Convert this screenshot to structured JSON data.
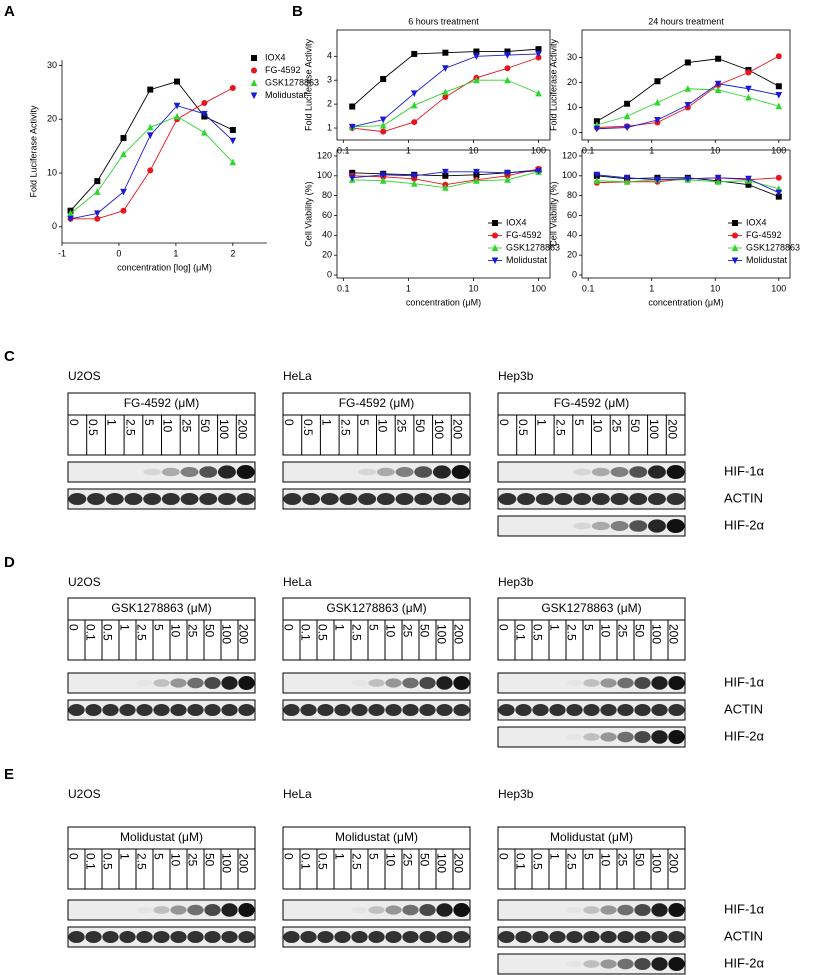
{
  "panels": [
    "A",
    "B"
  ],
  "chart_data": [
    {
      "type": "line",
      "xlabel": "concentration [log] (μM)",
      "ylabel": "Fold Luciferase Activity",
      "x": [
        -0.85,
        -0.38,
        0.08,
        0.55,
        1.02,
        1.5,
        2.0
      ],
      "xlim": [
        -1,
        2.6
      ],
      "xticks": [
        -1,
        0,
        1,
        2
      ],
      "ylim": [
        -3,
        31
      ],
      "yticks": [
        0,
        10,
        20,
        30
      ],
      "legend": "upper-right",
      "series": [
        {
          "name": "IOX4",
          "color": "#000000",
          "marker": "square",
          "values": [
            3,
            8.5,
            16.5,
            25.5,
            27,
            20.5,
            18
          ]
        },
        {
          "name": "FG-4592",
          "color": "#e8141e",
          "marker": "circle",
          "values": [
            1.5,
            1.5,
            3,
            10.5,
            20,
            23,
            25.8
          ]
        },
        {
          "name": "GSK1278863",
          "color": "#2ed62e",
          "marker": "triangle",
          "values": [
            2.5,
            6.5,
            13.5,
            18.5,
            20.5,
            17.5,
            12
          ]
        },
        {
          "name": "Molidustat",
          "color": "#1a1ad6",
          "marker": "triangle-down",
          "values": [
            1.5,
            2.5,
            6.5,
            17,
            22.5,
            21,
            16
          ]
        }
      ]
    },
    {
      "type": "line",
      "title": "6 hours treatment",
      "ylabel": "Fold Luciferase Activity",
      "xscale": "log",
      "x": [
        0.137,
        0.41,
        1.23,
        3.7,
        11.1,
        33.3,
        100
      ],
      "xlim": [
        0.08,
        150
      ],
      "xticks": [
        0.1,
        1,
        10,
        100
      ],
      "ylim": [
        0.5,
        5.1
      ],
      "yticks": [
        1,
        2,
        3,
        4
      ],
      "series": [
        {
          "color": "#000000",
          "marker": "square",
          "values": [
            1.9,
            3.05,
            4.1,
            4.15,
            4.2,
            4.2,
            4.3
          ]
        },
        {
          "color": "#e8141e",
          "marker": "circle",
          "values": [
            1,
            0.85,
            1.25,
            2.3,
            3.1,
            3.5,
            3.95
          ]
        },
        {
          "color": "#2ed62e",
          "marker": "triangle",
          "values": [
            1.05,
            1.1,
            1.95,
            2.5,
            3.0,
            3.0,
            2.45
          ]
        },
        {
          "color": "#1a1ad6",
          "marker": "triangle-down",
          "values": [
            1.05,
            1.35,
            2.45,
            3.5,
            4.0,
            4.05,
            4.1
          ]
        }
      ]
    },
    {
      "type": "line",
      "title": "24 hours treatment",
      "ylabel": "Fold Luciferase Activity",
      "xscale": "log",
      "x": [
        0.137,
        0.41,
        1.23,
        3.7,
        11.1,
        33.3,
        100
      ],
      "xlim": [
        0.08,
        150
      ],
      "xticks": [
        0.1,
        1,
        10,
        100
      ],
      "ylim": [
        -3,
        41
      ],
      "yticks": [
        0,
        10,
        20,
        30
      ],
      "series": [
        {
          "color": "#000000",
          "marker": "square",
          "values": [
            4.5,
            11.5,
            20.5,
            28,
            29.5,
            25,
            18.5
          ]
        },
        {
          "color": "#e8141e",
          "marker": "circle",
          "values": [
            2,
            2.5,
            4,
            10,
            19,
            24,
            30.5
          ]
        },
        {
          "color": "#2ed62e",
          "marker": "triangle",
          "values": [
            3,
            6.5,
            12,
            17.5,
            17,
            14,
            10.5
          ]
        },
        {
          "color": "#1a1ad6",
          "marker": "triangle-down",
          "values": [
            1.5,
            2,
            5,
            11,
            19.5,
            17.5,
            15
          ]
        }
      ]
    },
    {
      "type": "line",
      "xlabel": "concentration (μM)",
      "ylabel": "Cell Viability (%)",
      "xscale": "log",
      "x": [
        0.137,
        0.41,
        1.23,
        3.7,
        11.1,
        33.3,
        100
      ],
      "xlim": [
        0.08,
        150
      ],
      "xticks": [
        0.1,
        1,
        10,
        100
      ],
      "ylim": [
        -3,
        126
      ],
      "yticks": [
        0,
        20,
        40,
        60,
        80,
        100,
        120
      ],
      "legend": "lower-right",
      "series": [
        {
          "name": "IOX4",
          "color": "#000000",
          "marker": "square",
          "values": [
            103,
            102,
            101,
            100,
            101,
            103,
            106
          ]
        },
        {
          "name": "FG-4592",
          "color": "#e8141e",
          "marker": "circle",
          "values": [
            100,
            99,
            97,
            91,
            96,
            100,
            107
          ]
        },
        {
          "name": "GSK1278863",
          "color": "#2ed62e",
          "marker": "triangle",
          "values": [
            96,
            95,
            92,
            88,
            95,
            96,
            104
          ]
        },
        {
          "name": "Molidustat",
          "color": "#1a1ad6",
          "marker": "triangle-down",
          "values": [
            98,
            101,
            100,
            104,
            104,
            103,
            105
          ]
        }
      ]
    },
    {
      "type": "line",
      "xlabel": "concentration (μM)",
      "ylabel": "Cell Viability (%)",
      "xscale": "log",
      "x": [
        0.137,
        0.41,
        1.23,
        3.7,
        11.1,
        33.3,
        100
      ],
      "xlim": [
        0.08,
        150
      ],
      "xticks": [
        0.1,
        1,
        10,
        100
      ],
      "ylim": [
        -3,
        126
      ],
      "yticks": [
        0,
        20,
        40,
        60,
        80,
        100,
        120
      ],
      "legend": "lower-right",
      "series": [
        {
          "name": "IOX4",
          "color": "#000000",
          "marker": "square",
          "values": [
            100,
            97,
            98,
            98,
            95,
            91,
            79
          ]
        },
        {
          "name": "FG-4592",
          "color": "#e8141e",
          "marker": "circle",
          "values": [
            93,
            94,
            94,
            97,
            98,
            96,
            98
          ]
        },
        {
          "name": "GSK1278863",
          "color": "#2ed62e",
          "marker": "triangle",
          "values": [
            95,
            94,
            96,
            96,
            94,
            95,
            87
          ]
        },
        {
          "name": "Molidustat",
          "color": "#1a1ad6",
          "marker": "triangle-down",
          "values": [
            101,
            98,
            96,
            97,
            98,
            97,
            83
          ]
        }
      ]
    }
  ],
  "blots": [
    {
      "label": "C",
      "bands": [
        "HIF-1α",
        "ACTIN",
        "HIF-2α"
      ],
      "cell_lines": [
        {
          "name": "U2OS",
          "drug": "FG-4592 (μM)",
          "concentrations": [
            "0",
            "0.5",
            "1",
            "2.5",
            "5",
            "10",
            "25",
            "50",
            "100",
            "200"
          ]
        },
        {
          "name": "HeLa",
          "drug": "FG-4592 (μM)",
          "concentrations": [
            "0",
            "0.5",
            "1",
            "2.5",
            "5",
            "10",
            "25",
            "50",
            "100",
            "200"
          ]
        },
        {
          "name": "Hep3b",
          "drug": "FG-4592 (μM)",
          "concentrations": [
            "0",
            "0.5",
            "1",
            "2.5",
            "5",
            "10",
            "25",
            "50",
            "100",
            "200"
          ]
        }
      ]
    },
    {
      "label": "D",
      "bands": [
        "HIF-1α",
        "ACTIN",
        "HIF-2α"
      ],
      "cell_lines": [
        {
          "name": "U2OS",
          "drug": "GSK1278863 (μM)",
          "concentrations": [
            "0",
            "0.1",
            "0.5",
            "1",
            "2.5",
            "5",
            "10",
            "25",
            "50",
            "100",
            "200"
          ]
        },
        {
          "name": "HeLa",
          "drug": "GSK1278863 (μM)",
          "concentrations": [
            "0",
            "0.1",
            "0.5",
            "1",
            "2.5",
            "5",
            "10",
            "25",
            "50",
            "100",
            "200"
          ]
        },
        {
          "name": "Hep3b",
          "drug": "GSK1278863 (μM)",
          "concentrations": [
            "0",
            "0.1",
            "0.5",
            "1",
            "2.5",
            "5",
            "10",
            "25",
            "50",
            "100",
            "200"
          ]
        }
      ]
    },
    {
      "label": "E",
      "bands": [
        "HIF-1α",
        "ACTIN",
        "HIF-2α"
      ],
      "cell_lines": [
        {
          "name": "U2OS",
          "drug": "Molidustat (μM)",
          "concentrations": [
            "0",
            "0.1",
            "0.5",
            "1",
            "2.5",
            "5",
            "10",
            "25",
            "50",
            "100",
            "200"
          ]
        },
        {
          "name": "HeLa",
          "drug": "Molidustat (μM)",
          "concentrations": [
            "0",
            "0.1",
            "0.5",
            "1",
            "2.5",
            "5",
            "10",
            "25",
            "50",
            "100",
            "200"
          ]
        },
        {
          "name": "Hep3b",
          "drug": "Molidustat (μM)",
          "concentrations": [
            "0",
            "0.1",
            "0.5",
            "1",
            "2.5",
            "5",
            "10",
            "25",
            "50",
            "100",
            "200"
          ]
        }
      ]
    }
  ]
}
